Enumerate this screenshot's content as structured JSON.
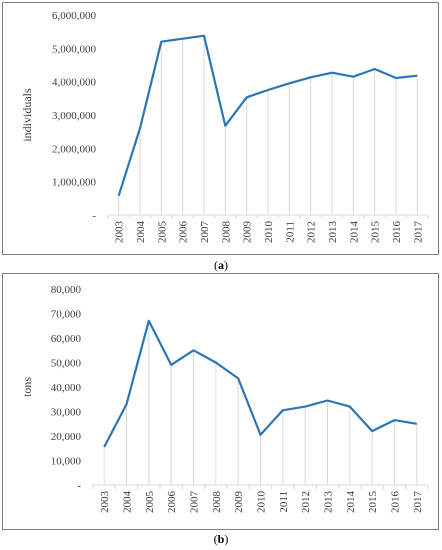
{
  "chart_data": [
    {
      "type": "line",
      "panel_label": "a",
      "ylabel": "individuals",
      "ylim": [
        0,
        6000000
      ],
      "y_ticks": [
        "-",
        "1,000,000",
        "2,000,000",
        "3,000,000",
        "4,000,000",
        "5,000,000",
        "6,000,000"
      ],
      "y_tick_values": [
        0,
        1000000,
        2000000,
        3000000,
        4000000,
        5000000,
        6000000
      ],
      "x": [
        "2003",
        "2004",
        "2005",
        "2006",
        "2007",
        "2008",
        "2009",
        "2010",
        "2011",
        "2012",
        "2013",
        "2014",
        "2015",
        "2016",
        "2017"
      ],
      "series": [
        {
          "values": [
            580000,
            2600000,
            5200000,
            5290000,
            5380000,
            2680000,
            3530000,
            3750000,
            3950000,
            4130000,
            4270000,
            4150000,
            4380000,
            4110000,
            4180000
          ],
          "color": "#2e75b6"
        }
      ],
      "grid": "vertical",
      "legend": "none"
    },
    {
      "type": "line",
      "panel_label": "b",
      "ylabel": "tons",
      "ylim": [
        0,
        80000
      ],
      "y_ticks": [
        "-",
        "10,000",
        "20,000",
        "30,000",
        "40,000",
        "50,000",
        "60,000",
        "70,000",
        "80,000"
      ],
      "y_tick_values": [
        0,
        10000,
        20000,
        30000,
        40000,
        50000,
        60000,
        70000,
        80000
      ],
      "x": [
        "2003",
        "2004",
        "2005",
        "2006",
        "2007",
        "2008",
        "2009",
        "2010",
        "2011",
        "2012",
        "2013",
        "2014",
        "2015",
        "2016",
        "2017"
      ],
      "series": [
        {
          "values": [
            15500,
            33000,
            67000,
            49000,
            55000,
            50000,
            43500,
            20500,
            30500,
            32000,
            34500,
            32000,
            22000,
            26500,
            25000
          ],
          "color": "#2e75b6"
        }
      ],
      "grid": "vertical",
      "legend": "none"
    }
  ]
}
